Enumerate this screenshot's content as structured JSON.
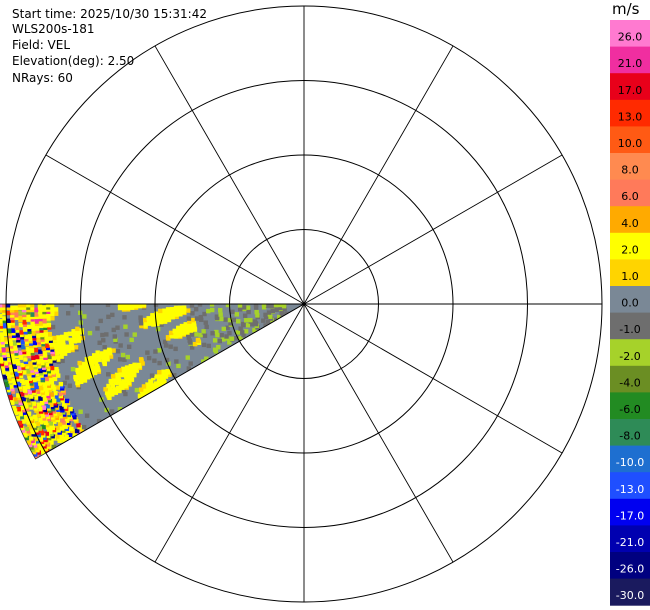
{
  "header": {
    "start_time": "Start time: 2025/10/30 15:31:42",
    "instrument": "WLS200s-181",
    "field": "Field: VEL",
    "elevation": "Elevation(deg): 2.50",
    "nrays": "NRays: 60"
  },
  "chart_data": {
    "type": "heatmap",
    "projection": "polar PPI",
    "field": "VEL",
    "elevation_deg": 2.5,
    "n_rays": 60,
    "azimuth_sector_deg": [
      240,
      270
    ],
    "rings": 4,
    "spokes_every_deg": 30,
    "colorbar": {
      "unit": "m/s",
      "ticks": [
        "26.0",
        "21.0",
        "17.0",
        "13.0",
        "10.0",
        "8.0",
        "6.0",
        "4.0",
        "2.0",
        "1.0",
        "0.0",
        "-1.0",
        "-2.0",
        "-4.0",
        "-6.0",
        "-8.0",
        "-10.0",
        "-13.0",
        "-17.0",
        "-21.0",
        "-26.0",
        "-30.0"
      ],
      "bins": [
        {
          "range": "26.0 to 30.0",
          "color": "#ff7ad0"
        },
        {
          "range": "21.0 to 26.0",
          "color": "#f02ea0"
        },
        {
          "range": "17.0 to 21.0",
          "color": "#e8001a"
        },
        {
          "range": "13.0 to 17.0",
          "color": "#ff2a00"
        },
        {
          "range": "10.0 to 13.0",
          "color": "#ff5a14"
        },
        {
          "range": "8.0 to 10.0",
          "color": "#ff8a50"
        },
        {
          "range": "6.0 to 8.0",
          "color": "#ff7a5a"
        },
        {
          "range": "4.0 to 6.0",
          "color": "#ffaa00"
        },
        {
          "range": "2.0 to 4.0",
          "color": "#ffff00"
        },
        {
          "range": "1.0 to 2.0",
          "color": "#ffd400"
        },
        {
          "range": "0.0 to 1.0",
          "color": "#7a8896"
        },
        {
          "range": "-1.0 to 0.0",
          "color": "#6e6e6e"
        },
        {
          "range": "-2.0 to -1.0",
          "color": "#a6d22a"
        },
        {
          "range": "-4.0 to -2.0",
          "color": "#6b8e23"
        },
        {
          "range": "-6.0 to -4.0",
          "color": "#228b22"
        },
        {
          "range": "-8.0 to -6.0",
          "color": "#2e8b57"
        },
        {
          "range": "-10.0 to -8.0",
          "color": "#1e6fd0"
        },
        {
          "range": "-13.0 to -10.0",
          "color": "#1f4fff"
        },
        {
          "range": "-17.0 to -13.0",
          "color": "#0000f0"
        },
        {
          "range": "-21.0 to -17.0",
          "color": "#0000b0"
        },
        {
          "range": "-26.0 to -21.0",
          "color": "#000080"
        },
        {
          "range": "-30.0 to -26.0",
          "color": "#1a1a5e"
        }
      ]
    }
  }
}
